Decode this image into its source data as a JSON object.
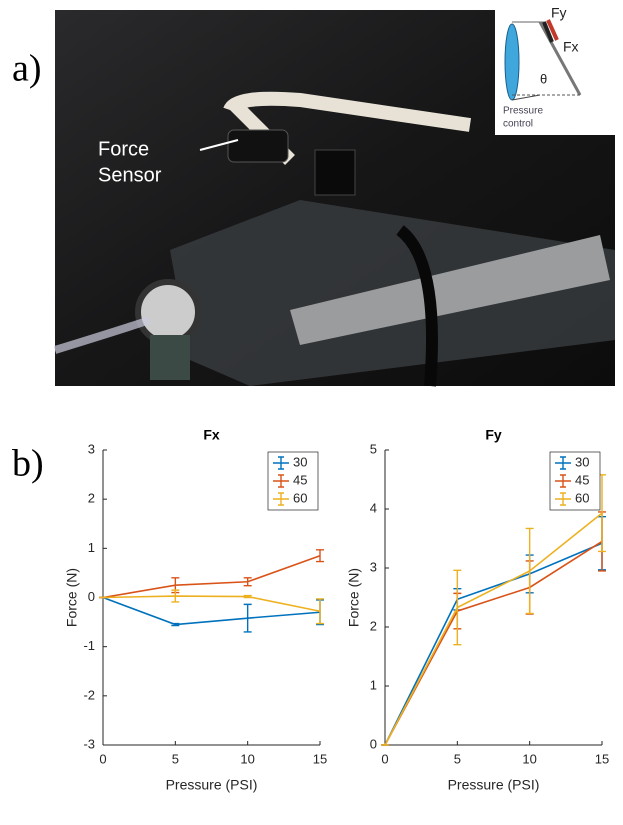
{
  "panels": {
    "a": "a)",
    "b": "b)"
  },
  "photo": {
    "annotation": [
      "Force",
      "Sensor"
    ],
    "inset": {
      "fy": "Fy",
      "fx": "Fx",
      "theta": "θ",
      "pressure_control": [
        "Pressure",
        "control"
      ]
    }
  },
  "chart_data": [
    {
      "type": "line",
      "title": "Fx",
      "x_label": "Pressure (PSI)",
      "y_label": "Force (N)",
      "x": [
        0,
        5,
        10,
        15
      ],
      "xlim": [
        0,
        15
      ],
      "xticks": [
        0,
        5,
        10,
        15
      ],
      "ylim": [
        -3,
        3
      ],
      "yticks": [
        -3,
        -2,
        -1,
        0,
        1,
        2,
        3
      ],
      "legend": "top-right",
      "series": [
        {
          "name": "30",
          "color": "#0072bd",
          "values": [
            0,
            -0.55,
            -0.42,
            -0.3
          ],
          "errors": [
            0,
            0.02,
            0.28,
            0.25
          ]
        },
        {
          "name": "45",
          "color": "#d95319",
          "values": [
            0,
            0.25,
            0.32,
            0.85
          ],
          "errors": [
            0,
            0.15,
            0.08,
            0.12
          ]
        },
        {
          "name": "60",
          "color": "#edb120",
          "values": [
            0,
            0.03,
            0.02,
            -0.28
          ],
          "errors": [
            0,
            0.12,
            0.02,
            0.25
          ]
        }
      ]
    },
    {
      "type": "line",
      "title": "Fy",
      "x_label": "Pressure (PSI)",
      "y_label": "Force (N)",
      "x": [
        0,
        5,
        10,
        15
      ],
      "xlim": [
        0,
        15
      ],
      "xticks": [
        0,
        5,
        10,
        15
      ],
      "ylim": [
        0,
        5
      ],
      "yticks": [
        0,
        1,
        2,
        3,
        4,
        5
      ],
      "legend": "top-right",
      "series": [
        {
          "name": "30",
          "color": "#0072bd",
          "values": [
            0,
            2.47,
            2.9,
            3.42
          ],
          "errors": [
            0,
            0.18,
            0.32,
            0.45
          ]
        },
        {
          "name": "45",
          "color": "#d95319",
          "values": [
            0,
            2.27,
            2.67,
            3.45
          ],
          "errors": [
            0,
            0.3,
            0.45,
            0.5
          ]
        },
        {
          "name": "60",
          "color": "#edb120",
          "values": [
            0,
            2.33,
            2.95,
            3.93
          ],
          "errors": [
            0,
            0.63,
            0.72,
            0.65
          ]
        }
      ]
    }
  ]
}
